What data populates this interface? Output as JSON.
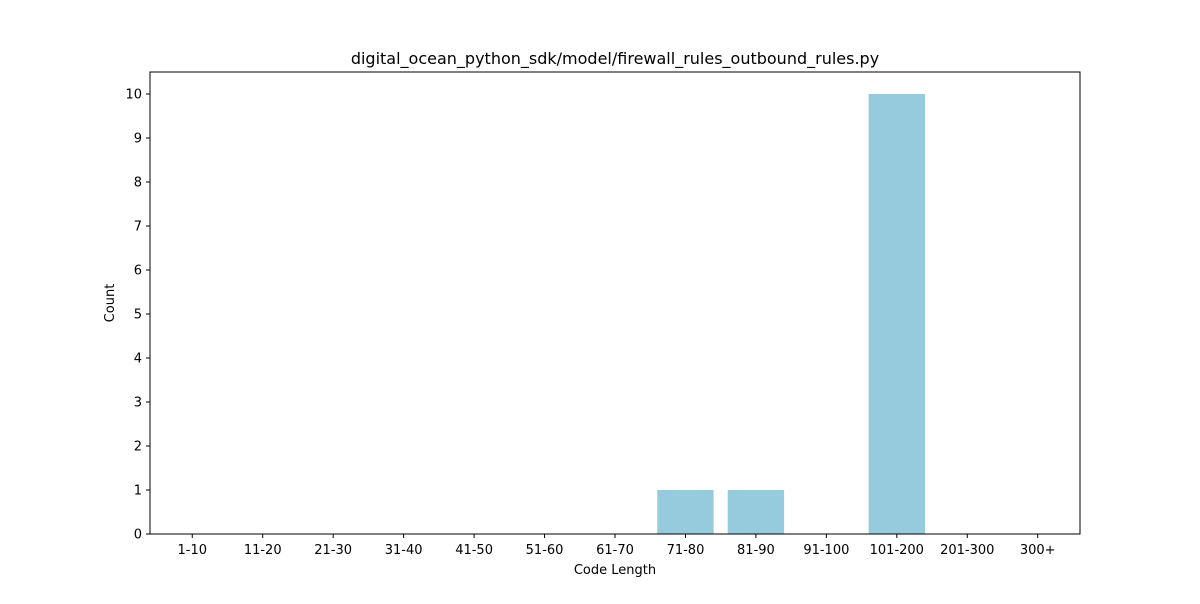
{
  "chart_data": {
    "type": "bar",
    "title": "digital_ocean_python_sdk/model/firewall_rules_outbound_rules.py",
    "xlabel": "Code Length",
    "ylabel": "Count",
    "categories": [
      "1-10",
      "11-20",
      "21-30",
      "31-40",
      "41-50",
      "51-60",
      "61-70",
      "71-80",
      "81-90",
      "91-100",
      "101-200",
      "201-300",
      "300+"
    ],
    "values": [
      0,
      0,
      0,
      0,
      0,
      0,
      0,
      1,
      1,
      0,
      10,
      0,
      0
    ],
    "ylim": [
      0,
      10.5
    ],
    "yticks": [
      0,
      1,
      2,
      3,
      4,
      5,
      6,
      7,
      8,
      9,
      10
    ],
    "grid": false,
    "legend": "none",
    "colors": {
      "bar": "#96cadd",
      "axis": "#000000"
    }
  }
}
